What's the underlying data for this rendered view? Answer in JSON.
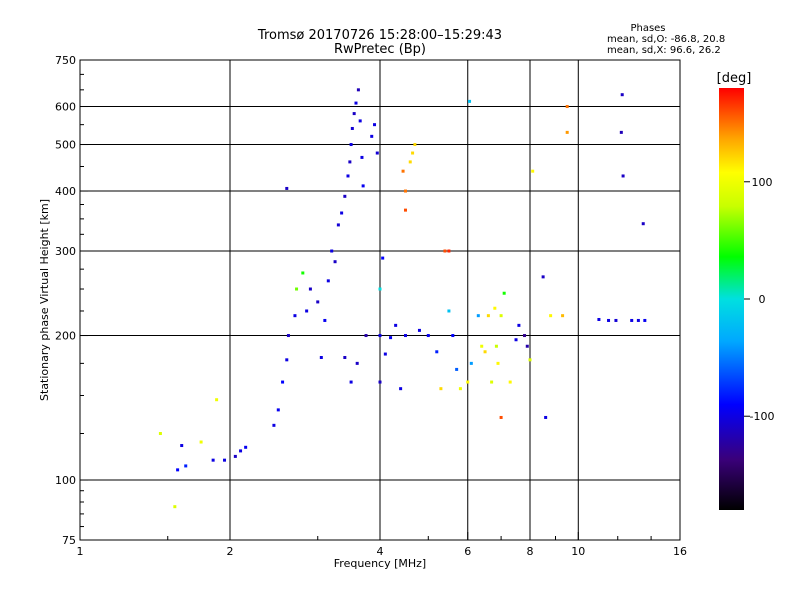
{
  "header": {
    "title_line1": "Tromsø 20170726 15:28:00–15:29:43",
    "title_line2": "RwPretec (Bp)"
  },
  "info": {
    "heading": "Phases",
    "line1": "mean, sd,O: -86.8, 20.8",
    "line2": "mean, sd,X:  96.6, 26.2"
  },
  "colorbar": {
    "unit_label": "[deg]",
    "ticks": [
      "100",
      "0",
      "-100"
    ],
    "tick_values": [
      100,
      0,
      -100
    ],
    "range": [
      -180,
      180
    ]
  },
  "chart_data": {
    "type": "scatter",
    "title": "Tromsø 20170726 15:28:00–15:29:43",
    "subtitle": "RwPretec (Bp)",
    "xlabel": "Frequency [MHz]",
    "ylabel": "Stationary phase Virtual Height [km]",
    "xscale": "log",
    "yscale": "log",
    "xlim": [
      1,
      16
    ],
    "ylim": [
      75,
      750
    ],
    "x_ticks": [
      "1",
      "2",
      "4",
      "6",
      "8",
      "10",
      "16"
    ],
    "x_tick_values": [
      1,
      2,
      4,
      6,
      8,
      10,
      16
    ],
    "x_grid_values": [
      2,
      4,
      6,
      8,
      10
    ],
    "y_ticks": [
      "75",
      "100",
      "200",
      "300",
      "400",
      "500",
      "600",
      "750"
    ],
    "y_tick_values": [
      75,
      100,
      200,
      300,
      400,
      500,
      600,
      750
    ],
    "y_grid_values": [
      100,
      200,
      300,
      400,
      500,
      600
    ],
    "color_variable": "Phase [deg]",
    "grid": true,
    "points": [
      [
        1.45,
        125,
        90
      ],
      [
        1.55,
        88,
        90
      ],
      [
        1.57,
        105,
        -90
      ],
      [
        1.6,
        118,
        -100
      ],
      [
        1.63,
        107,
        -80
      ],
      [
        1.75,
        120,
        100
      ],
      [
        1.85,
        110,
        -100
      ],
      [
        1.88,
        147,
        100
      ],
      [
        1.95,
        110,
        -100
      ],
      [
        2.05,
        112,
        -110
      ],
      [
        2.1,
        115,
        -100
      ],
      [
        2.15,
        117,
        -95
      ],
      [
        2.45,
        130,
        -100
      ],
      [
        2.5,
        140,
        -95
      ],
      [
        2.55,
        160,
        -90
      ],
      [
        2.6,
        178,
        -100
      ],
      [
        2.6,
        405,
        -110
      ],
      [
        2.62,
        200,
        -110
      ],
      [
        2.7,
        220,
        -100
      ],
      [
        2.72,
        250,
        60
      ],
      [
        2.8,
        270,
        40
      ],
      [
        2.85,
        225,
        -100
      ],
      [
        2.9,
        250,
        -110
      ],
      [
        3.0,
        235,
        -110
      ],
      [
        3.05,
        180,
        -100
      ],
      [
        3.1,
        215,
        -95
      ],
      [
        3.15,
        260,
        -100
      ],
      [
        3.2,
        300,
        -100
      ],
      [
        3.25,
        285,
        -110
      ],
      [
        3.3,
        340,
        -105
      ],
      [
        3.35,
        360,
        -100
      ],
      [
        3.4,
        390,
        -110
      ],
      [
        3.45,
        430,
        -100
      ],
      [
        3.48,
        460,
        -110
      ],
      [
        3.5,
        500,
        -100
      ],
      [
        3.52,
        540,
        -105
      ],
      [
        3.55,
        580,
        -110
      ],
      [
        3.58,
        610,
        -100
      ],
      [
        3.62,
        650,
        -115
      ],
      [
        3.65,
        560,
        -100
      ],
      [
        3.68,
        470,
        -100
      ],
      [
        3.7,
        410,
        -95
      ],
      [
        3.4,
        180,
        -110
      ],
      [
        3.5,
        160,
        -100
      ],
      [
        3.6,
        175,
        -110
      ],
      [
        3.75,
        200,
        -120
      ],
      [
        3.85,
        520,
        -100
      ],
      [
        3.9,
        550,
        -100
      ],
      [
        3.95,
        480,
        -105
      ],
      [
        4.0,
        250,
        0
      ],
      [
        4.0,
        200,
        -100
      ],
      [
        4.0,
        160,
        -110
      ],
      [
        4.05,
        290,
        -90
      ],
      [
        4.1,
        183,
        -100
      ],
      [
        4.2,
        198,
        -95
      ],
      [
        4.3,
        210,
        -100
      ],
      [
        4.4,
        155,
        -100
      ],
      [
        4.45,
        440,
        150
      ],
      [
        4.5,
        400,
        150
      ],
      [
        4.5,
        365,
        160
      ],
      [
        4.6,
        460,
        120
      ],
      [
        4.65,
        480,
        120
      ],
      [
        4.7,
        500,
        120
      ],
      [
        4.5,
        200,
        -100
      ],
      [
        4.8,
        205,
        -100
      ],
      [
        5.0,
        200,
        -95
      ],
      [
        5.2,
        185,
        -80
      ],
      [
        5.3,
        155,
        120
      ],
      [
        5.4,
        300,
        160
      ],
      [
        5.5,
        300,
        170
      ],
      [
        5.5,
        225,
        -20
      ],
      [
        5.6,
        200,
        -90
      ],
      [
        5.7,
        170,
        -60
      ],
      [
        5.8,
        155,
        100
      ],
      [
        6.0,
        160,
        110
      ],
      [
        6.05,
        615,
        -20
      ],
      [
        6.1,
        175,
        -40
      ],
      [
        6.3,
        220,
        -40
      ],
      [
        6.4,
        190,
        100
      ],
      [
        6.5,
        185,
        120
      ],
      [
        6.6,
        220,
        120
      ],
      [
        6.7,
        160,
        90
      ],
      [
        6.8,
        228,
        110
      ],
      [
        6.85,
        190,
        80
      ],
      [
        6.9,
        175,
        110
      ],
      [
        7.0,
        220,
        90
      ],
      [
        7.0,
        135,
        160
      ],
      [
        7.1,
        245,
        40
      ],
      [
        7.3,
        160,
        110
      ],
      [
        7.5,
        196,
        -100
      ],
      [
        7.6,
        210,
        -100
      ],
      [
        7.8,
        200,
        -130
      ],
      [
        7.9,
        190,
        -120
      ],
      [
        8.0,
        178,
        90
      ],
      [
        8.1,
        440,
        110
      ],
      [
        8.5,
        265,
        -110
      ],
      [
        8.6,
        135,
        -100
      ],
      [
        8.8,
        220,
        110
      ],
      [
        9.3,
        220,
        130
      ],
      [
        9.5,
        530,
        140
      ],
      [
        9.5,
        600,
        150
      ],
      [
        11.0,
        216,
        -100
      ],
      [
        11.5,
        215,
        -100
      ],
      [
        11.9,
        215,
        -105
      ],
      [
        12.2,
        530,
        -115
      ],
      [
        12.25,
        635,
        -110
      ],
      [
        12.3,
        430,
        -110
      ],
      [
        12.8,
        215,
        -100
      ],
      [
        13.2,
        215,
        -100
      ],
      [
        13.5,
        342,
        -110
      ],
      [
        13.6,
        215,
        -95
      ]
    ]
  }
}
